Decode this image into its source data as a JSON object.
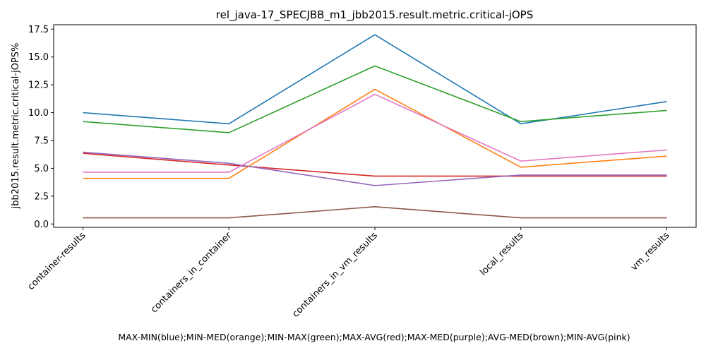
{
  "chart_data": {
    "type": "line",
    "title": "rel_java-17_SPECJBB_m1_jbb2015.result.metric.critical-jOPS",
    "xlabel": "MAX-MIN(blue);MIN-MED(orange);MIN-MAX(green);MAX-AVG(red);MAX-MED(purple);AVG-MED(brown);MIN-AVG(pink)",
    "ylabel": "jbb2015.result.metric.critical-jOPS%",
    "categories": [
      "container-results",
      "containers_in_container",
      "containers_in_vm_results",
      "local_results",
      "vm_results"
    ],
    "ylim": [
      -0.3,
      17.9
    ],
    "yticks": [
      "0.0",
      "2.5",
      "5.0",
      "7.5",
      "10.0",
      "12.5",
      "15.0",
      "17.5"
    ],
    "grid": false,
    "series": [
      {
        "color": "#1f77b4",
        "values": [
          10.0,
          9.0,
          17.0,
          9.0,
          11.0
        ]
      },
      {
        "color": "#ff7f0e",
        "values": [
          4.1,
          4.1,
          12.1,
          5.1,
          6.1
        ]
      },
      {
        "color": "#2ca02c",
        "values": [
          9.2,
          8.2,
          14.2,
          9.2,
          10.2
        ]
      },
      {
        "color": "#d62728",
        "values": [
          6.35,
          5.3,
          4.3,
          4.3,
          4.3
        ]
      },
      {
        "color": "#9467bd",
        "values": [
          6.45,
          5.45,
          3.45,
          4.4,
          4.4
        ]
      },
      {
        "color": "#8c564b",
        "values": [
          0.55,
          0.55,
          1.55,
          0.55,
          0.55
        ]
      },
      {
        "color": "#e377c2",
        "values": [
          4.65,
          4.65,
          11.65,
          5.65,
          6.65
        ]
      }
    ]
  }
}
